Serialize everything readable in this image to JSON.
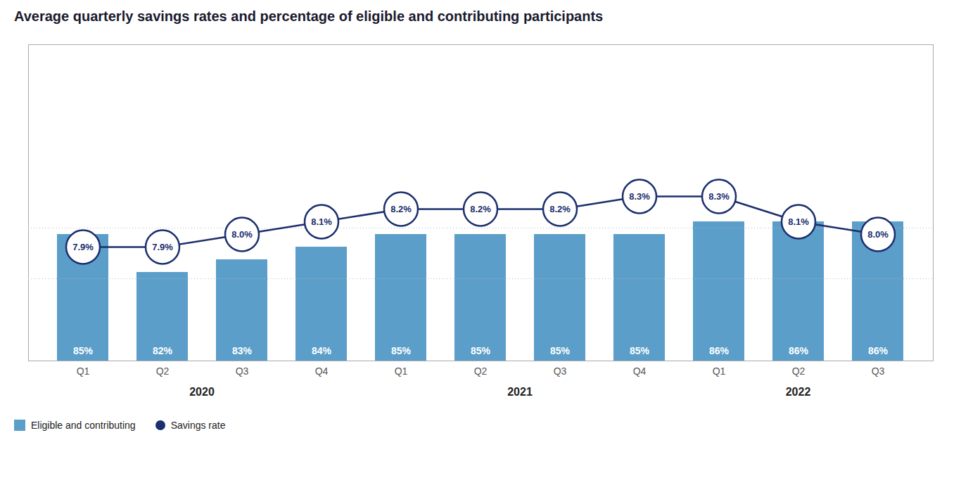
{
  "chart_data": {
    "type": "bar",
    "title": "Average quarterly savings rates and percentage of eligible and contributing participants",
    "categories": [
      "Q1",
      "Q2",
      "Q3",
      "Q4",
      "Q1",
      "Q2",
      "Q3",
      "Q4",
      "Q1",
      "Q2",
      "Q3"
    ],
    "x_groups": [
      "2020",
      "2020",
      "2020",
      "2020",
      "2021",
      "2021",
      "2021",
      "2021",
      "2022",
      "2022",
      "2022"
    ],
    "series": [
      {
        "name": "Eligible and contributing",
        "type": "bar",
        "color": "#5B9EC9",
        "values": [
          85,
          82,
          83,
          84,
          85,
          85,
          85,
          85,
          86,
          86,
          86
        ],
        "value_labels": [
          "85%",
          "82%",
          "83%",
          "84%",
          "85%",
          "85%",
          "85%",
          "85%",
          "86%",
          "86%",
          "86%"
        ],
        "data_labels": true
      },
      {
        "name": "Savings rate",
        "type": "line",
        "axis": "y2",
        "color": "#1B2F6E",
        "marker": "circle",
        "values": [
          7.9,
          7.9,
          8.0,
          8.1,
          8.2,
          8.2,
          8.2,
          8.3,
          8.3,
          8.1,
          8.0
        ],
        "value_labels": [
          "7.9%",
          "7.9%",
          "8.0%",
          "8.1%",
          "8.2%",
          "8.2%",
          "8.2%",
          "8.3%",
          "8.3%",
          "8.1%",
          "8.0%"
        ],
        "data_labels": true
      }
    ],
    "reference_lines": {
      "values": [
        7.65,
        8.05
      ],
      "axis": "y2",
      "color": "#bbbbbb",
      "line_style": "dotted"
    },
    "ylim": [
      75,
      100
    ],
    "y2lim": [
      7.0,
      9.5
    ],
    "tick_labels": "x",
    "grid": false,
    "legend": "bottom"
  }
}
